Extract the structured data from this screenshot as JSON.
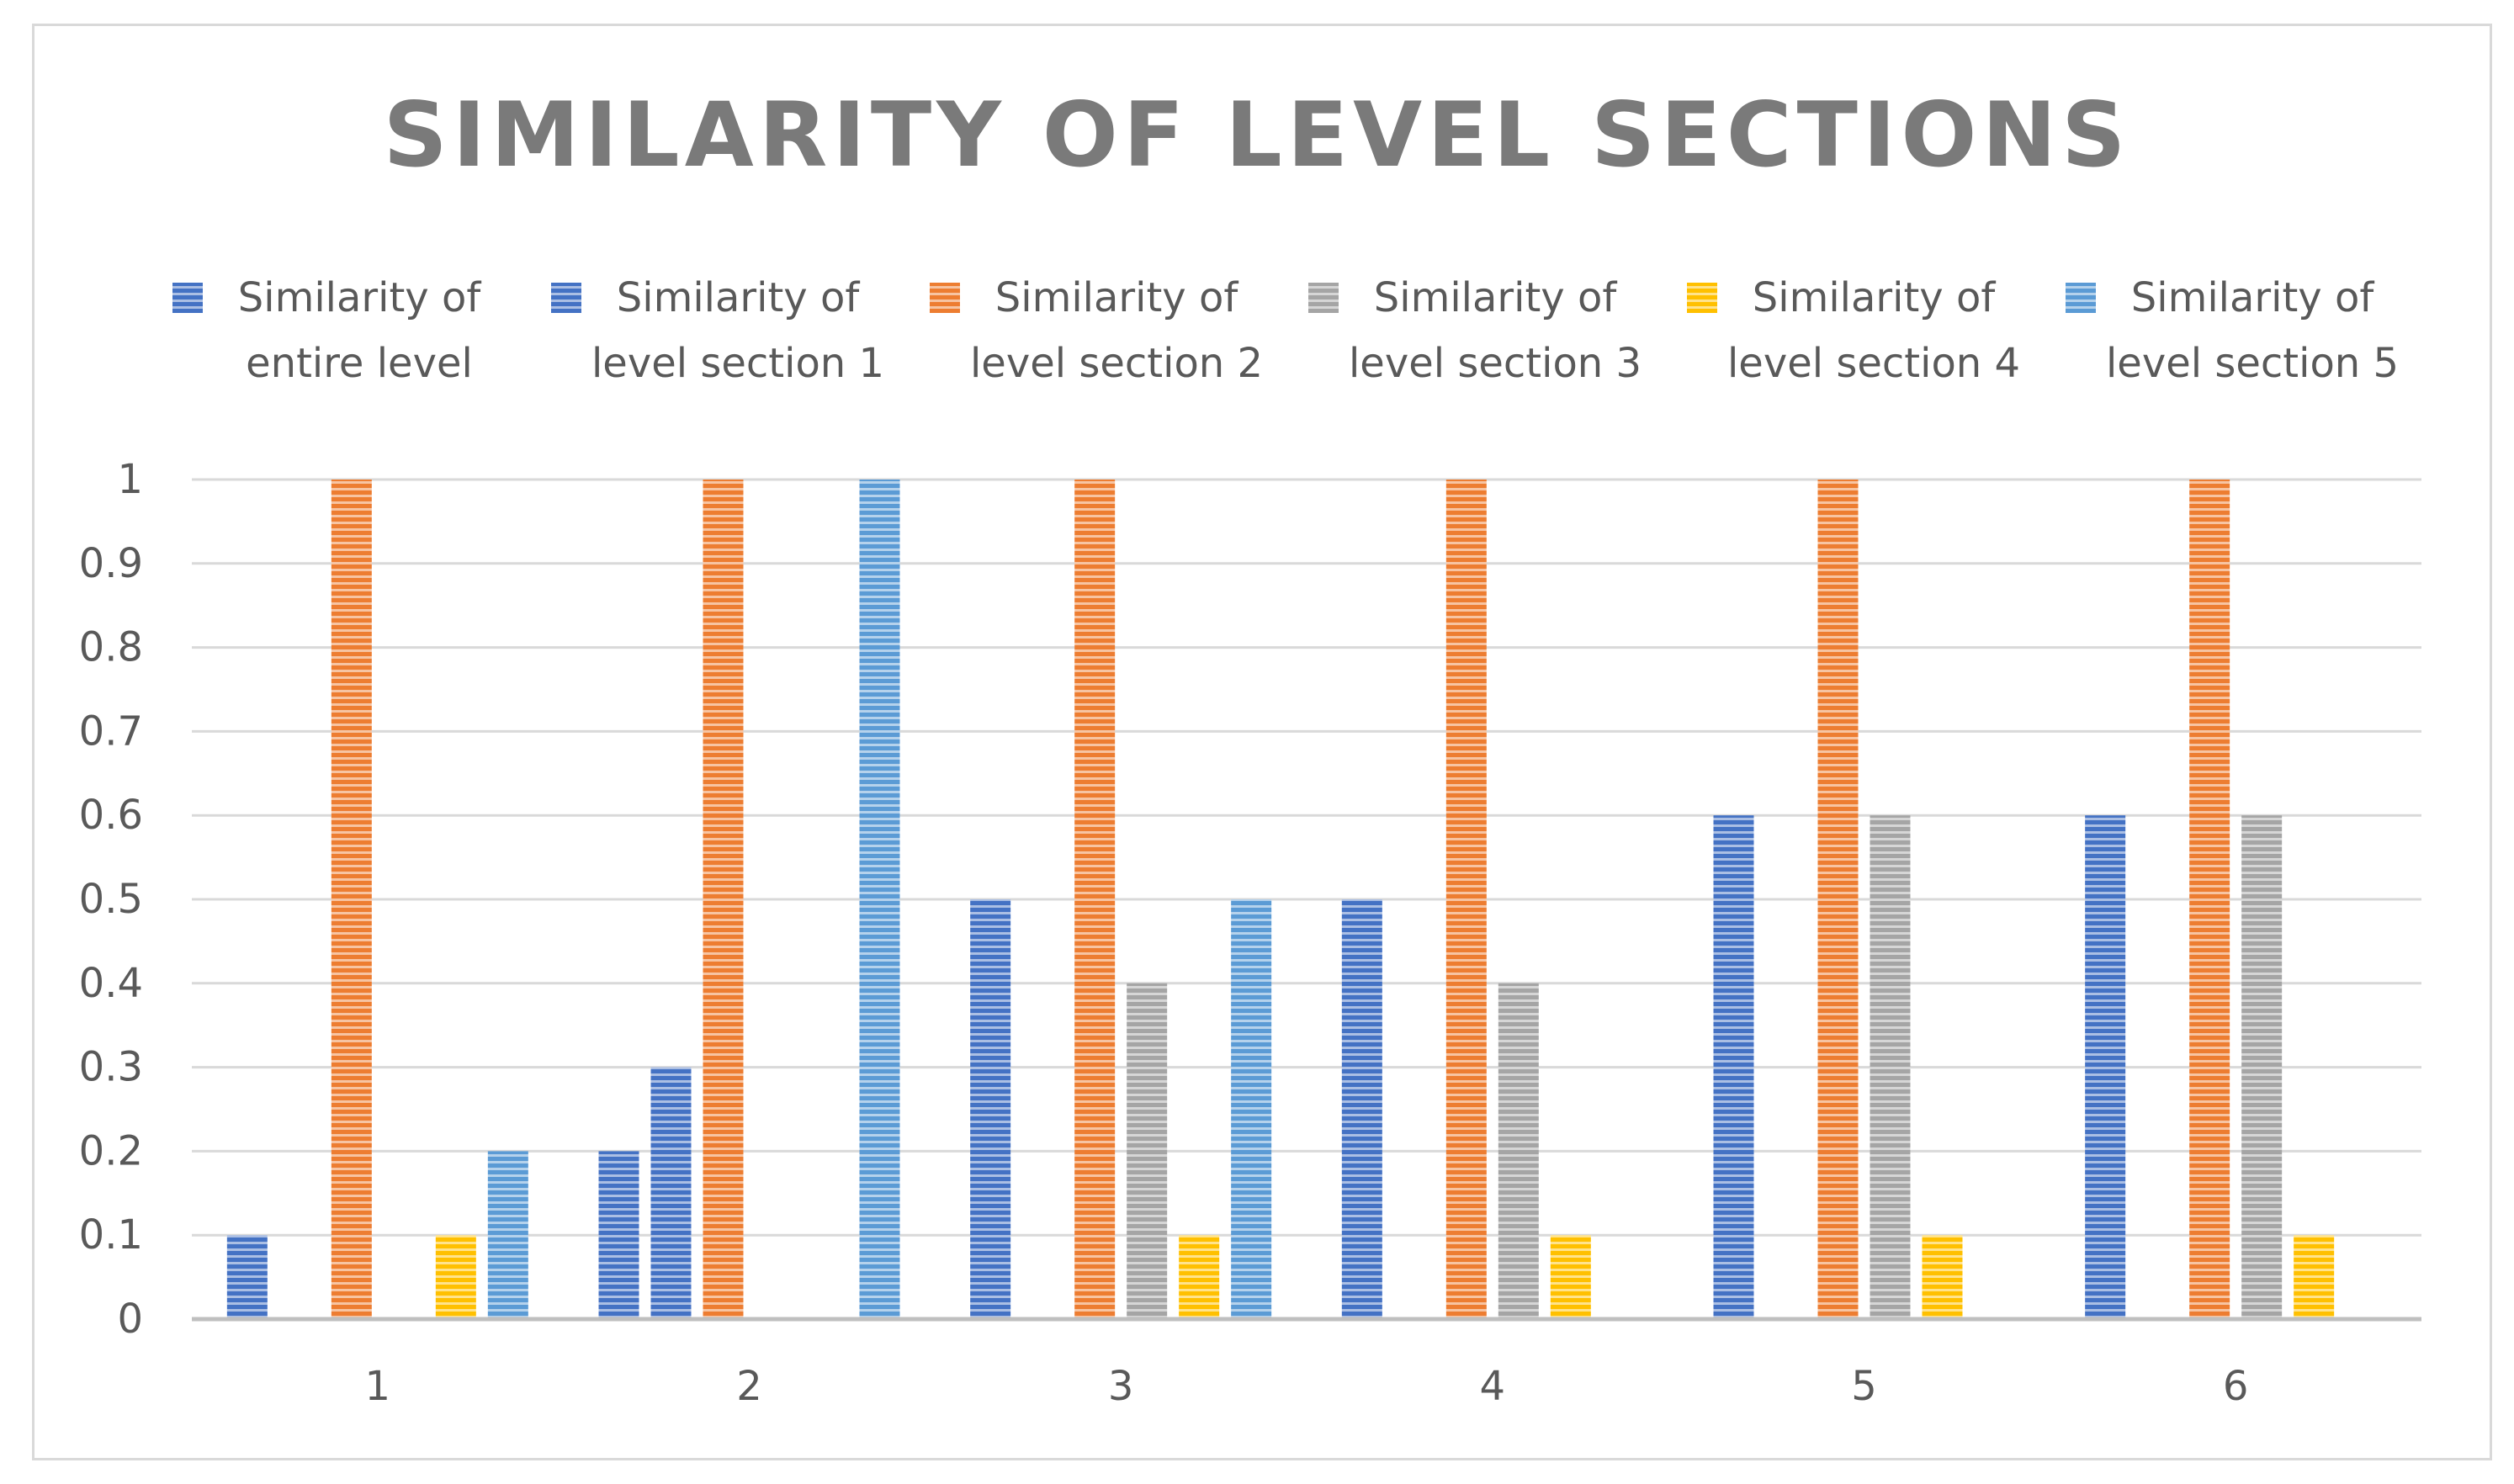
{
  "chart_data": {
    "type": "bar",
    "title": "SIMILARITY OF LEVEL SECTIONS",
    "xlabel": "",
    "ylabel": "",
    "categories": [
      "1",
      "2",
      "3",
      "4",
      "5",
      "6"
    ],
    "ylim": [
      0,
      1
    ],
    "yticks": [
      "0",
      "0.1",
      "0.2",
      "0.3",
      "0.4",
      "0.5",
      "0.6",
      "0.7",
      "0.8",
      "0.9",
      "1"
    ],
    "grid": true,
    "legend_position": "top",
    "series": [
      {
        "name": "Similarity of entire level",
        "legend_lines": [
          "Similarity of",
          "entire level"
        ],
        "color": "#4472C4",
        "values": [
          0.1,
          0.2,
          0.5,
          0.5,
          0.6,
          0.6
        ]
      },
      {
        "name": "Similarity of level section 1",
        "legend_lines": [
          "Similarity of",
          "level section 1"
        ],
        "color": "#4472C4",
        "values": [
          0,
          0.3,
          0,
          0,
          0,
          0
        ]
      },
      {
        "name": "Similarity of level section 2",
        "legend_lines": [
          "Similarity of",
          "level section 2"
        ],
        "color": "#ED7D31",
        "values": [
          1,
          1,
          1,
          1,
          1,
          1
        ]
      },
      {
        "name": "Similarity of level section 3",
        "legend_lines": [
          "Similarity of",
          "level section 3"
        ],
        "color": "#A5A5A5",
        "values": [
          0,
          0,
          0.4,
          0.4,
          0.6,
          0.6
        ]
      },
      {
        "name": "Similarity of level section 4",
        "legend_lines": [
          "Similarity of",
          "level section 4"
        ],
        "color": "#FFC000",
        "values": [
          0.1,
          0,
          0.1,
          0.1,
          0.1,
          0.1
        ]
      },
      {
        "name": "Similarity of level section 5",
        "legend_lines": [
          "Similarity of",
          "level section 5"
        ],
        "color": "#5B9BD5",
        "values": [
          0.2,
          1,
          0.5,
          0,
          0,
          0
        ]
      }
    ]
  }
}
